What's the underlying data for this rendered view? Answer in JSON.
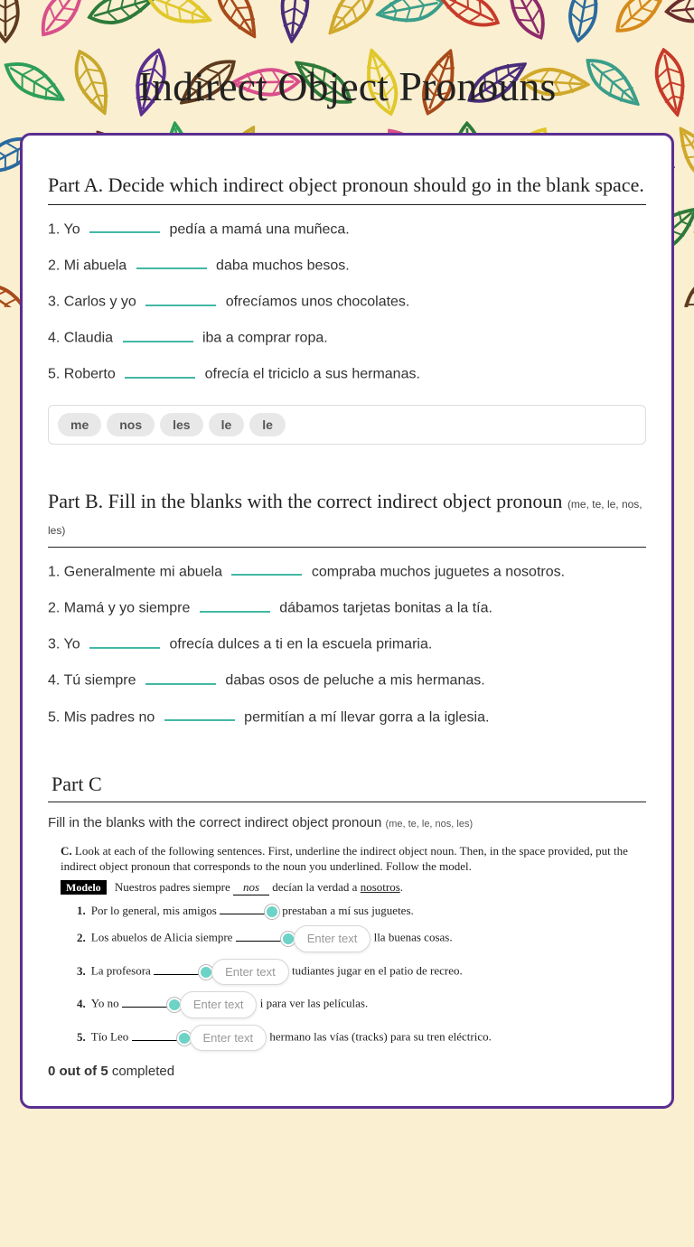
{
  "title": "Indirect Object\nPronouns",
  "header": {
    "background_color": "#faefd0",
    "leaf_colors": [
      "#5e3a1e",
      "#d94f8b",
      "#2d7a3a",
      "#e0c82a",
      "#a84a1a",
      "#4a2d7a",
      "#d0a82a",
      "#3a9e8a",
      "#c73a2a",
      "#8e2a6a",
      "#2a6a9e",
      "#d68a1a",
      "#6a2d2d",
      "#2d9e5a",
      "#c7a82a",
      "#5a2e91"
    ]
  },
  "card_border_color": "#5a2e91",
  "blank_color": "#43b8a5",
  "partA": {
    "title": "Part A.  Decide which indirect object pronoun should go in the blank space.",
    "items": [
      {
        "num": "1.",
        "pre": "Yo",
        "post": "pedía a mamá una muñeca."
      },
      {
        "num": "2.",
        "pre": "Mi abuela",
        "post": "daba muchos besos."
      },
      {
        "num": "3.",
        "pre": "Carlos y yo",
        "post": "ofrecíamos unos chocolates."
      },
      {
        "num": "4.",
        "pre": "Claudia",
        "post": "iba a comprar ropa."
      },
      {
        "num": "5.",
        "pre": "Roberto",
        "post": "ofrecía el triciclo a sus hermanas."
      }
    ],
    "bank": [
      "me",
      "nos",
      "les",
      "le",
      "le"
    ]
  },
  "partB": {
    "title": "Part B.  Fill in the blanks with the correct indirect object pronoun",
    "subtitle": "(me, te, le, nos, les)",
    "items": [
      {
        "num": "1.",
        "pre": "Generalmente mi abuela",
        "post": "compraba muchos juguetes a nosotros."
      },
      {
        "num": "2.",
        "pre": "Mamá y yo siempre",
        "post": "dábamos tarjetas bonitas a la tía."
      },
      {
        "num": "3.",
        "pre": "Yo",
        "post": "ofrecía dulces a ti en la escuela primaria."
      },
      {
        "num": "4.",
        "pre": "Tú siempre",
        "post": "dabas osos de peluche a mis hermanas."
      },
      {
        "num": "5.",
        "pre": "Mis padres no",
        "post": "permitían a mí llevar gorra a la iglesia."
      }
    ]
  },
  "partC": {
    "title": "Part C",
    "instruction": "Fill in the blanks with the correct indirect object pronoun",
    "instruction_sub": "(me, te, le, nos, les)",
    "embedded_instr_bold": "C.",
    "embedded_instr": "Look at each of the following sentences. First, underline the indirect object noun. Then, in the space provided, put the indirect object pronoun that corresponds to the noun you underlined. Follow the model.",
    "modelo_label": "Modelo",
    "modelo_text_pre": "Nuestros padres siempre",
    "modelo_fill": "nos",
    "modelo_text_mid": "decían la verdad a",
    "modelo_underlined": "nosotros",
    "items": [
      {
        "n": "1.",
        "pre": "Por lo general, mis amigos",
        "post": "prestaban a mí sus juguetes.",
        "placeholder": ""
      },
      {
        "n": "2.",
        "pre": "Los abuelos de Alicia siempre",
        "post": "lla buenas cosas.",
        "placeholder": "Enter text"
      },
      {
        "n": "3.",
        "pre": "La profesora",
        "post": "tudiantes jugar en el patio de recreo.",
        "placeholder": "Enter text"
      },
      {
        "n": "4.",
        "pre": "Yo no",
        "post": "i para ver las películas.",
        "placeholder": "Enter text"
      },
      {
        "n": "5.",
        "pre": "Tío Leo",
        "post": "hermano las vías (tracks) para su tren eléctrico.",
        "placeholder": "Enter text"
      }
    ],
    "progress_bold": "0 out of 5",
    "progress_rest": "completed"
  },
  "marker_color": "#6dd3c7",
  "input_placeholder_color": "#999999"
}
